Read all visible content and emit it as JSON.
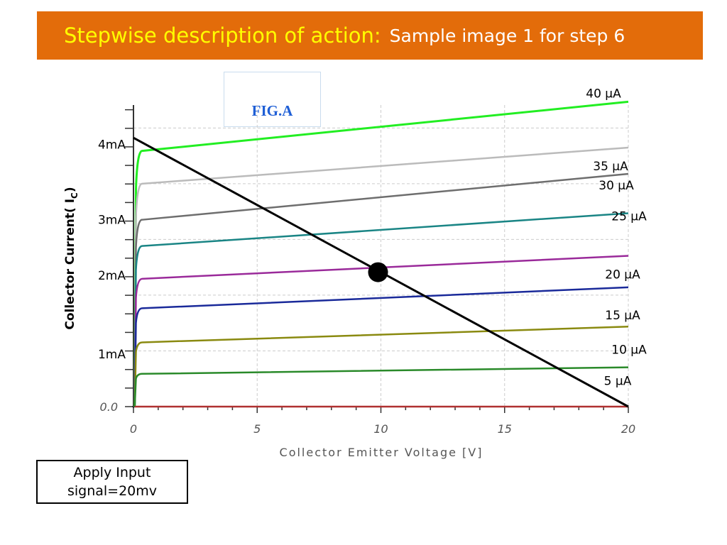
{
  "header": {
    "title": "Stepwise description of action:",
    "subtitle": "Sample image 1  for step 6"
  },
  "figure_label": "FIG.A",
  "input_box": {
    "line1": "Apply Input",
    "line2": "signal=20mv"
  },
  "colors": {
    "header_bg": "#e36c0a",
    "header_title": "#ffff00",
    "header_subtitle": "#ffffff",
    "fig_label": "#1f5fd6"
  },
  "chart_data": {
    "type": "line",
    "title": "",
    "xlabel": "Collector Emitter Voltage [V]",
    "ylabel": "Collector Current( I",
    "ylabel_sub": "C",
    "ylabel_end": ")",
    "xlim": [
      0,
      20
    ],
    "ylim": [
      0,
      4.6
    ],
    "grid": true,
    "x_ticks": [
      {
        "value": 0,
        "label": "0"
      },
      {
        "value": 5,
        "label": "5"
      },
      {
        "value": 10,
        "label": "10"
      },
      {
        "value": 15,
        "label": "15"
      },
      {
        "value": 20,
        "label": "20"
      }
    ],
    "y_ticks": [
      {
        "value": 0,
        "label": "0.0"
      },
      {
        "value": 0.8,
        "label": "1mA"
      },
      {
        "value": 2.0,
        "label": "2mA"
      },
      {
        "value": 2.85,
        "label": "3mA"
      },
      {
        "value": 4.0,
        "label": "4mA"
      }
    ],
    "series": [
      {
        "name": "40 µA",
        "color": "#22ee22",
        "knee": 3.9,
        "end": 4.65
      },
      {
        "name": "35 µA",
        "color": "#bbbbbb",
        "knee": 3.4,
        "end": 3.95
      },
      {
        "name": "30 µA",
        "color": "#6e6e6e",
        "knee": 2.85,
        "end": 3.55
      },
      {
        "name": "25 µA",
        "color": "#1a8585",
        "knee": 2.45,
        "end": 2.95
      },
      {
        "name": "20 µA",
        "color": "#9a2a9a",
        "knee": 1.95,
        "end": 2.3
      },
      {
        "name": "15 µA",
        "color": "#1a2a9a",
        "knee": 1.5,
        "end": 1.82
      },
      {
        "name": "10 µA",
        "color": "#8a8a10",
        "knee": 0.98,
        "end": 1.22
      },
      {
        "name": "5 µA",
        "color": "#2a8a2a",
        "knee": 0.5,
        "end": 0.6
      },
      {
        "name": "",
        "color": "#b03030",
        "knee": 0.0,
        "end": 0.0
      }
    ],
    "load_line": {
      "x": [
        0,
        20
      ],
      "y": [
        4.1,
        0
      ]
    },
    "q_point": {
      "x": 10,
      "y": 2.05
    }
  }
}
